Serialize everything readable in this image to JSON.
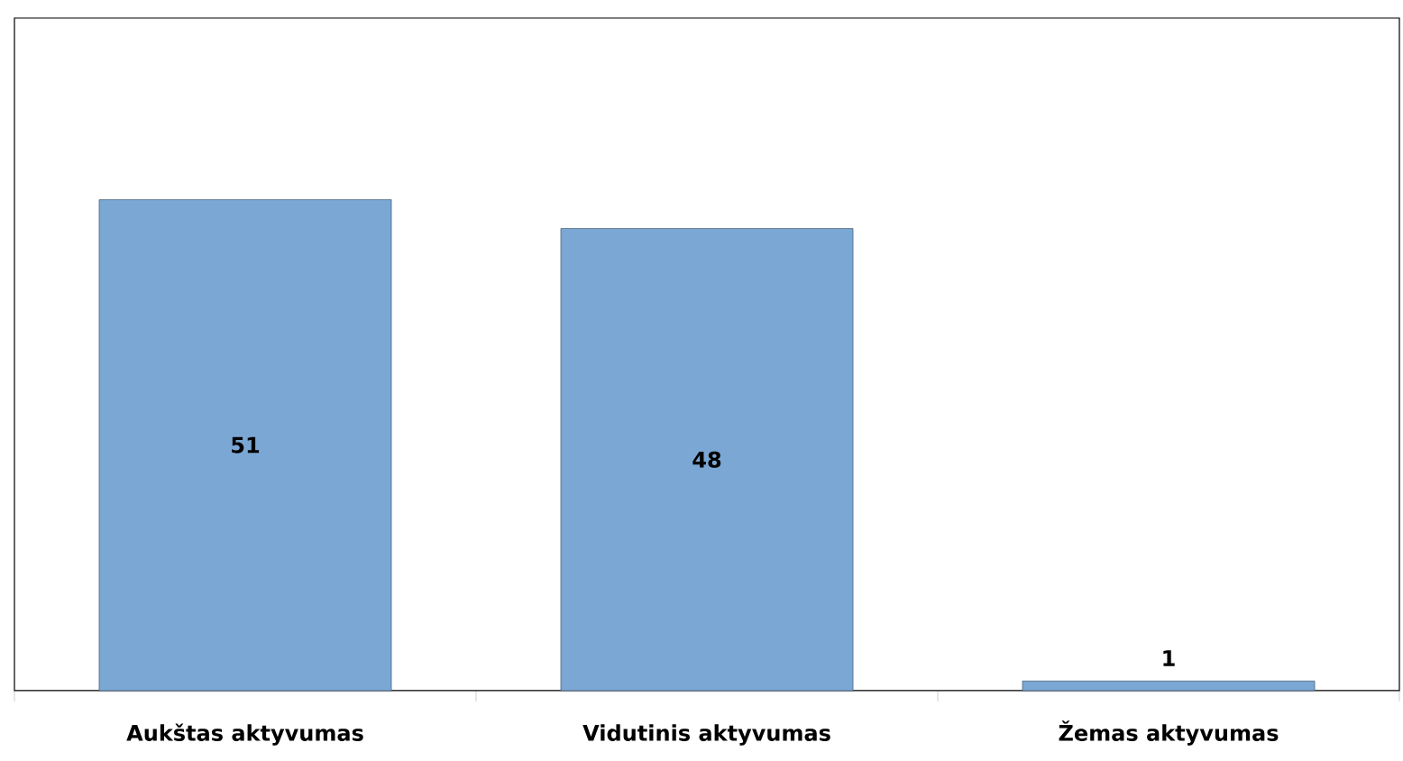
{
  "chart_data": {
    "type": "bar",
    "categories": [
      "Aukštas aktyvumas",
      "Vidutinis aktyvumas",
      "Žemas aktyvumas"
    ],
    "values": [
      51,
      48,
      1
    ],
    "color": "#7ba7d4",
    "data_labels": true
  }
}
